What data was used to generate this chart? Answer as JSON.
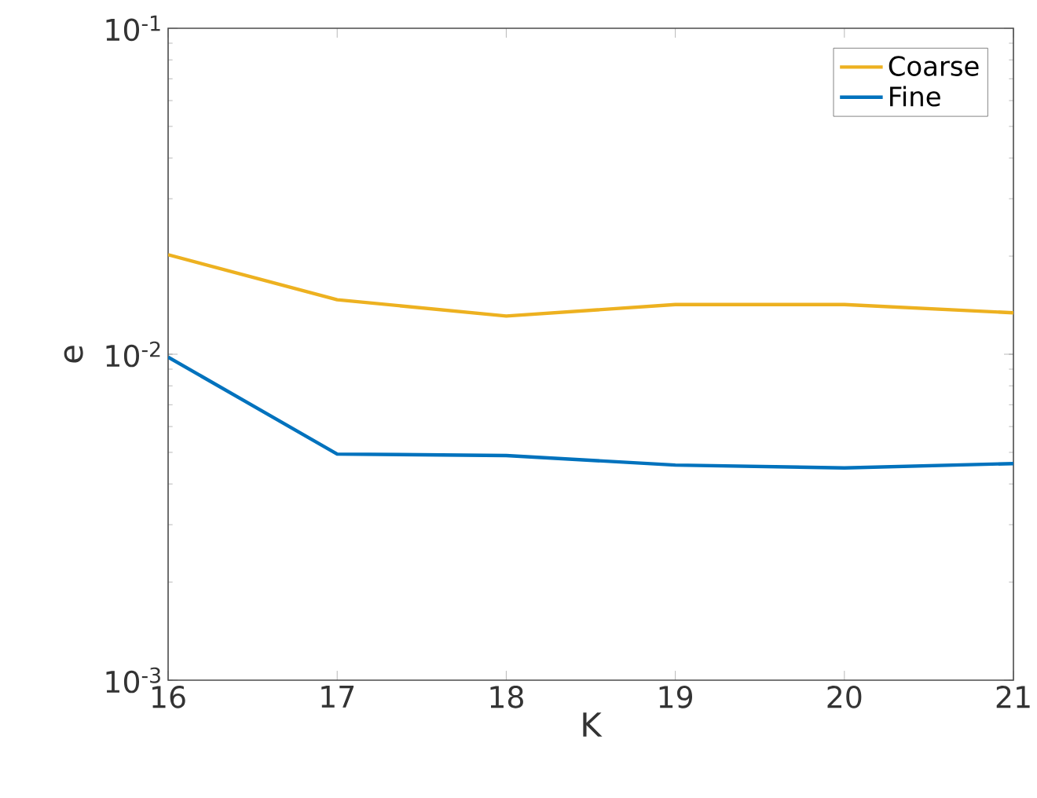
{
  "chart_data": {
    "type": "line",
    "xlabel": "K",
    "ylabel": "e",
    "log": "y",
    "x": [
      16,
      17,
      18,
      19,
      20,
      21
    ],
    "xlim": [
      16,
      21
    ],
    "xticks": [
      16,
      17,
      18,
      19,
      20,
      21
    ],
    "ylim": [
      0.001,
      0.1
    ],
    "yticks": [
      {
        "value": 0.001,
        "label": "10$^{-3}$"
      },
      {
        "value": 0.01,
        "label": "10$^{-2}$"
      },
      {
        "value": 0.1,
        "label": "10$^{-1}$"
      }
    ],
    "legend": "top right",
    "grid": false,
    "marker": "none",
    "line_style": "solid",
    "series": [
      {
        "name": "Coarse",
        "color": "#edb120",
        "values": [
          0.0202,
          0.0147,
          0.0131,
          0.0142,
          0.0142,
          0.0134
        ]
      },
      {
        "name": "Fine",
        "color": "#0072bd",
        "values": [
          0.0098,
          0.00494,
          0.00489,
          0.00457,
          0.00448,
          0.00462
        ]
      }
    ]
  }
}
